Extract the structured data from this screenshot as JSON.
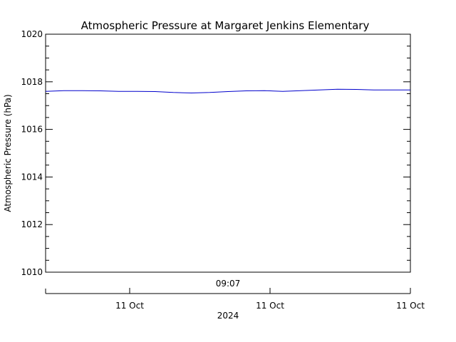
{
  "chart_data": {
    "type": "line",
    "title": "Atmospheric Pressure at Margaret Jenkins Elementary",
    "ylabel": "Atmospheric Pressure (hPa)",
    "ylim": [
      1010,
      1020
    ],
    "yticks": [
      "1010",
      "1012",
      "1014",
      "1016",
      "1018",
      "1020"
    ],
    "time_label": "09:07",
    "x_tick_labels": [
      "11 Oct",
      "11 Oct",
      "11 Oct"
    ],
    "year_label": "2024",
    "grid": false,
    "legend": "none",
    "series": [
      {
        "color": "#0000cc",
        "x": [
          0.0,
          0.05,
          0.1,
          0.15,
          0.2,
          0.25,
          0.3,
          0.35,
          0.4,
          0.45,
          0.5,
          0.55,
          0.6,
          0.65,
          0.7,
          0.75,
          0.8,
          0.85,
          0.9,
          0.95,
          1.0
        ],
        "values": [
          1017.6,
          1017.63,
          1017.63,
          1017.62,
          1017.6,
          1017.6,
          1017.59,
          1017.55,
          1017.53,
          1017.55,
          1017.59,
          1017.62,
          1017.63,
          1017.6,
          1017.63,
          1017.66,
          1017.69,
          1017.68,
          1017.66,
          1017.66,
          1017.66
        ]
      }
    ]
  }
}
